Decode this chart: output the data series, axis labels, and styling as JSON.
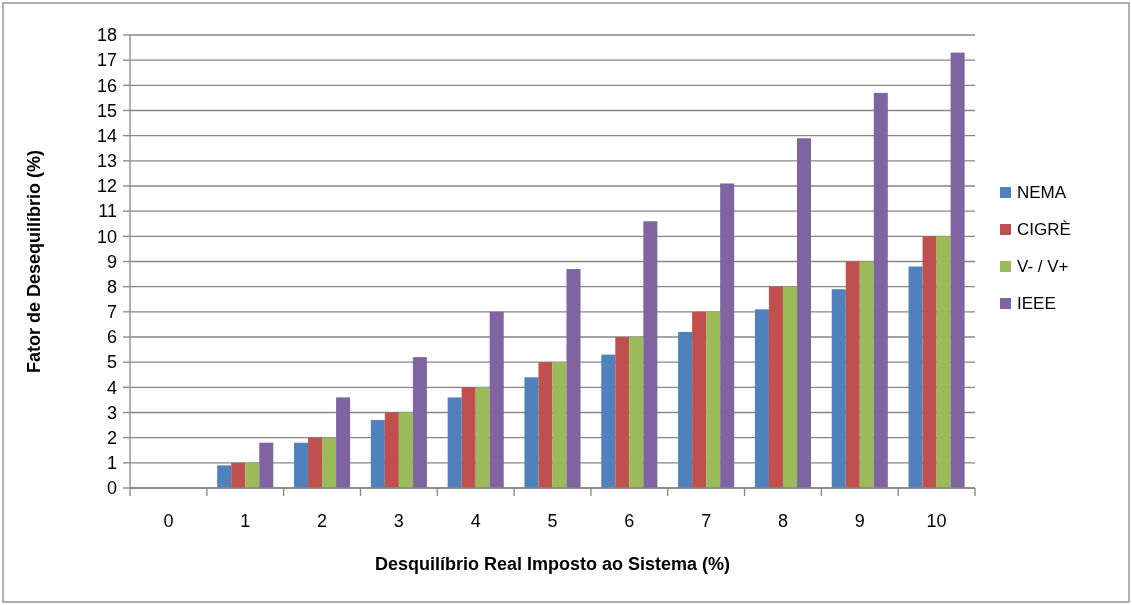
{
  "chart_data": {
    "type": "bar",
    "xlabel": "Desquilíbrio Real Imposto ao Sistema (%)",
    "ylabel": "Fator de Desequilíbrio (%)",
    "categories": [
      "0",
      "1",
      "2",
      "3",
      "4",
      "5",
      "6",
      "7",
      "8",
      "9",
      "10"
    ],
    "series": [
      {
        "name": "NEMA",
        "color": "#4f81bd",
        "values": [
          0,
          0.9,
          1.8,
          2.7,
          3.6,
          4.4,
          5.3,
          6.2,
          7.1,
          7.9,
          8.8
        ]
      },
      {
        "name": "CIGRÈ",
        "color": "#c0504d",
        "values": [
          0,
          1,
          2,
          3,
          4,
          5,
          6,
          7,
          8,
          9,
          10
        ]
      },
      {
        "name": "V- / V+",
        "color": "#9bbb59",
        "values": [
          0,
          1,
          2,
          3,
          4,
          5,
          6,
          7,
          8,
          9,
          10
        ]
      },
      {
        "name": "IEEE",
        "color": "#8064a2",
        "values": [
          0,
          1.8,
          3.6,
          5.2,
          7.0,
          8.7,
          10.6,
          12.1,
          13.9,
          15.7,
          17.3
        ]
      }
    ],
    "ylim": [
      0,
      18
    ],
    "yticks": [
      0,
      1,
      2,
      3,
      4,
      5,
      6,
      7,
      8,
      9,
      10,
      11,
      12,
      13,
      14,
      15,
      16,
      17,
      18
    ],
    "grid": "y",
    "legend": "right"
  }
}
